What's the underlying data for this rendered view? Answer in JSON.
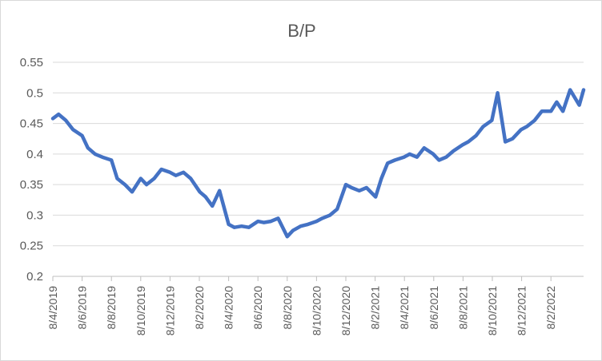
{
  "chart_data": {
    "type": "line",
    "title": "B/P",
    "xlabel": "",
    "ylabel": "",
    "ylim": [
      0.2,
      0.55
    ],
    "y_ticks": [
      "0.2",
      "0.25",
      "0.3",
      "0.35",
      "0.4",
      "0.45",
      "0.5",
      "0.55"
    ],
    "x_ticks": [
      "8/4/2019",
      "8/6/2019",
      "8/8/2019",
      "8/10/2019",
      "8/12/2019",
      "8/2/2020",
      "8/4/2020",
      "8/6/2020",
      "8/8/2020",
      "8/10/2020",
      "8/12/2020",
      "8/2/2021",
      "8/4/2021",
      "8/6/2021",
      "8/8/2021",
      "8/10/2021",
      "8/12/2021",
      "8/2/2022"
    ],
    "grid": true,
    "legend": "none",
    "line_color": "#4472C4",
    "series": [
      {
        "x": [
          "2019-04-08",
          "2019-04-20",
          "2019-05-05",
          "2019-05-20",
          "2019-06-08",
          "2019-06-20",
          "2019-07-05",
          "2019-07-20",
          "2019-08-08",
          "2019-08-20",
          "2019-09-05",
          "2019-09-20",
          "2019-10-08",
          "2019-10-20",
          "2019-11-05",
          "2019-11-20",
          "2019-12-08",
          "2019-12-20",
          "2020-01-05",
          "2020-01-20",
          "2020-02-08",
          "2020-02-20",
          "2020-03-05",
          "2020-03-20",
          "2020-04-08",
          "2020-04-20",
          "2020-05-05",
          "2020-05-20",
          "2020-06-08",
          "2020-06-20",
          "2020-07-05",
          "2020-07-20",
          "2020-08-08",
          "2020-08-20",
          "2020-09-05",
          "2020-09-20",
          "2020-10-08",
          "2020-10-20",
          "2020-11-05",
          "2020-11-20",
          "2020-12-08",
          "2020-12-20",
          "2021-01-05",
          "2021-01-20",
          "2021-02-08",
          "2021-02-20",
          "2021-03-05",
          "2021-03-20",
          "2021-04-08",
          "2021-04-20",
          "2021-05-05",
          "2021-05-20",
          "2021-06-08",
          "2021-06-20",
          "2021-07-05",
          "2021-07-20",
          "2021-08-08",
          "2021-08-20",
          "2021-09-05",
          "2021-09-20",
          "2021-10-08",
          "2021-10-20",
          "2021-11-05",
          "2021-11-20",
          "2021-12-08",
          "2021-12-20",
          "2022-01-05",
          "2022-01-20",
          "2022-02-08",
          "2022-02-20",
          "2022-03-05",
          "2022-03-20",
          "2022-04-08",
          "2022-04-20"
        ],
        "values": [
          0.458,
          0.465,
          0.455,
          0.44,
          0.43,
          0.41,
          0.4,
          0.395,
          0.39,
          0.36,
          0.35,
          0.338,
          0.36,
          0.35,
          0.36,
          0.375,
          0.37,
          0.365,
          0.37,
          0.36,
          0.338,
          0.33,
          0.315,
          0.34,
          0.285,
          0.28,
          0.282,
          0.28,
          0.29,
          0.288,
          0.29,
          0.295,
          0.265,
          0.275,
          0.282,
          0.285,
          0.29,
          0.295,
          0.3,
          0.31,
          0.35,
          0.345,
          0.34,
          0.345,
          0.33,
          0.36,
          0.385,
          0.39,
          0.395,
          0.4,
          0.395,
          0.41,
          0.4,
          0.39,
          0.395,
          0.405,
          0.415,
          0.42,
          0.43,
          0.445,
          0.455,
          0.5,
          0.42,
          0.425,
          0.44,
          0.445,
          0.455,
          0.47,
          0.47,
          0.485,
          0.47,
          0.505,
          0.48,
          0.505
        ]
      }
    ]
  }
}
